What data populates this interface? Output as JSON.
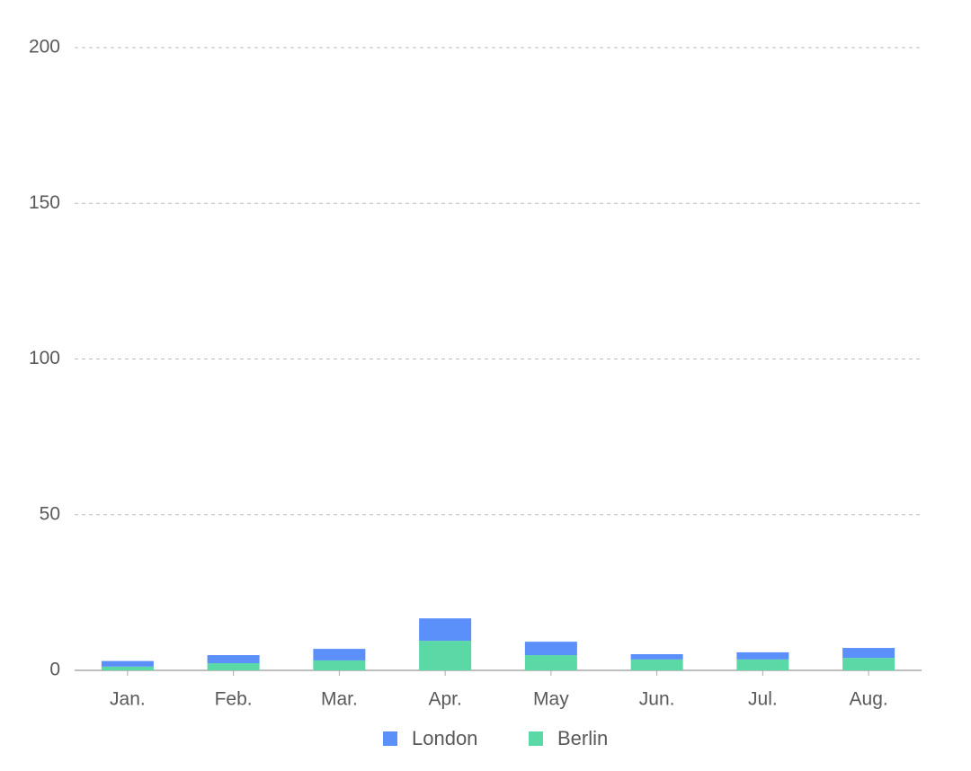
{
  "chart_data": {
    "type": "stacked-bar",
    "categories": [
      "Jan.",
      "Feb.",
      "Mar.",
      "Apr.",
      "May",
      "Jun.",
      "Jul.",
      "Aug."
    ],
    "series": [
      {
        "name": "London",
        "color": "#5B8FF9",
        "values": [
          1.8,
          2.6,
          3.7,
          7.2,
          4.3,
          1.7,
          2.3,
          3.2
        ]
      },
      {
        "name": "Berlin",
        "color": "#5AD8A6",
        "values": [
          1.2,
          2.3,
          3.2,
          9.5,
          4.9,
          3.5,
          3.5,
          4.0
        ]
      }
    ],
    "ylim": [
      0,
      200
    ],
    "yticks": [
      0,
      50,
      100,
      150,
      200
    ],
    "grid": true
  }
}
